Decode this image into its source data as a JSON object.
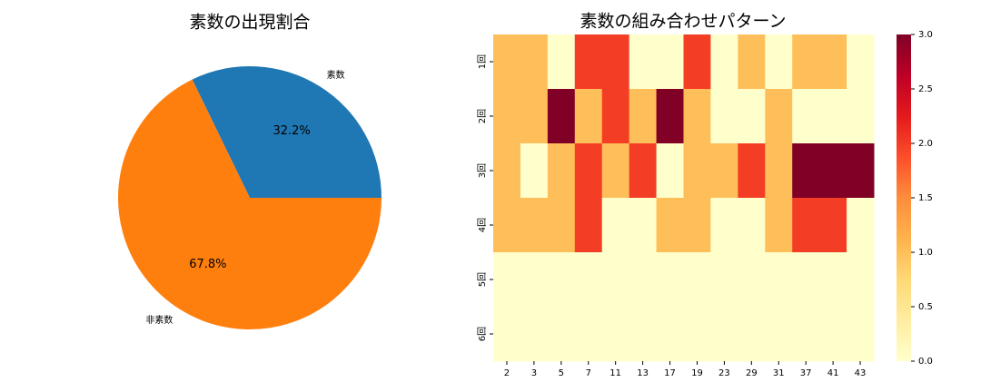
{
  "chart_data": [
    {
      "type": "pie",
      "title": "素数の出現割合",
      "categories": [
        "素数",
        "非素数"
      ],
      "values": [
        32.2,
        67.8
      ],
      "value_labels": [
        "32.2%",
        "67.8%"
      ],
      "colors": [
        "#1f77b4",
        "#ff7f0e"
      ]
    },
    {
      "type": "heatmap",
      "title": "素数の組み合わせパターン",
      "x": [
        "2",
        "3",
        "5",
        "7",
        "11",
        "13",
        "17",
        "19",
        "23",
        "29",
        "31",
        "37",
        "41",
        "43"
      ],
      "y": [
        "1回",
        "2回",
        "3回",
        "4回",
        "5回",
        "6回"
      ],
      "values": [
        [
          1,
          1,
          0,
          2,
          2,
          0,
          0,
          2,
          0,
          1,
          0,
          1,
          1,
          0
        ],
        [
          1,
          1,
          3,
          1,
          2,
          1,
          3,
          1,
          0,
          0,
          1,
          0,
          0,
          0
        ],
        [
          1,
          0,
          1,
          2,
          1,
          2,
          0,
          1,
          1,
          2,
          1,
          3,
          3,
          3
        ],
        [
          1,
          1,
          1,
          2,
          0,
          0,
          1,
          1,
          0,
          0,
          1,
          2,
          2,
          0
        ],
        [
          0,
          0,
          0,
          0,
          0,
          0,
          0,
          0,
          0,
          0,
          0,
          0,
          0,
          0
        ],
        [
          0,
          0,
          0,
          0,
          0,
          0,
          0,
          0,
          0,
          0,
          0,
          0,
          0,
          0
        ]
      ],
      "colormap": [
        "#ffffcc",
        "#ffeda0",
        "#fed976",
        "#feb24c",
        "#fd8d3c",
        "#fc4e2a",
        "#e31a1c",
        "#bd0026",
        "#800026"
      ],
      "zlim": [
        0,
        3
      ],
      "zticks": [
        {
          "value": 0,
          "label": "0.0"
        },
        {
          "value": 0.5,
          "label": "0.5"
        },
        {
          "value": 1,
          "label": "1.0"
        },
        {
          "value": 1.5,
          "label": "1.5"
        },
        {
          "value": 2,
          "label": "2.0"
        },
        {
          "value": 2.5,
          "label": "2.5"
        },
        {
          "value": 3,
          "label": "3.0"
        }
      ]
    }
  ]
}
